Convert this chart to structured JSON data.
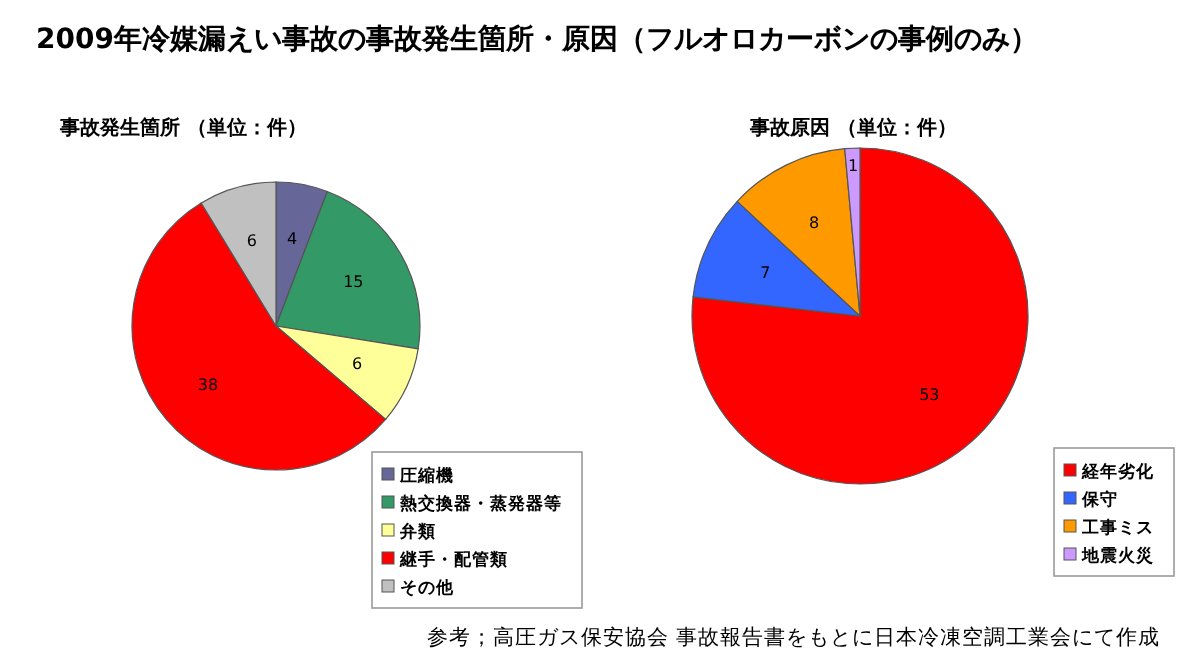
{
  "chart_data": [
    {
      "type": "pie",
      "title": "2009年冷媒漏えい事故の事故発生箇所・原因（フルオロカーボンの事例のみ）",
      "subtitle": "事故発生箇所 （単位：件）",
      "categories": [
        "圧縮機",
        "熱交換器・蒸発器等",
        "弁類",
        "継手・配管類",
        "その他"
      ],
      "values": [
        4,
        15,
        6,
        38,
        6
      ],
      "colors": [
        "#666699",
        "#339966",
        "#ffff99",
        "#ff0000",
        "#c0c0c0"
      ],
      "data_labels": true,
      "legend": "bottom right"
    },
    {
      "type": "pie",
      "subtitle": "事故原因 （単位：件）",
      "categories": [
        "経年劣化",
        "保守",
        "工事ミス",
        "地震火災"
      ],
      "values": [
        53,
        7,
        8,
        1
      ],
      "colors": [
        "#ff0000",
        "#3366ff",
        "#ff9900",
        "#cc99ff"
      ],
      "data_labels": true,
      "legend": "bottom right",
      "annotations": [
        "参考；高圧ガス保安協会 事故報告書をもとに日本冷凍空調工業会にて作成"
      ]
    }
  ]
}
